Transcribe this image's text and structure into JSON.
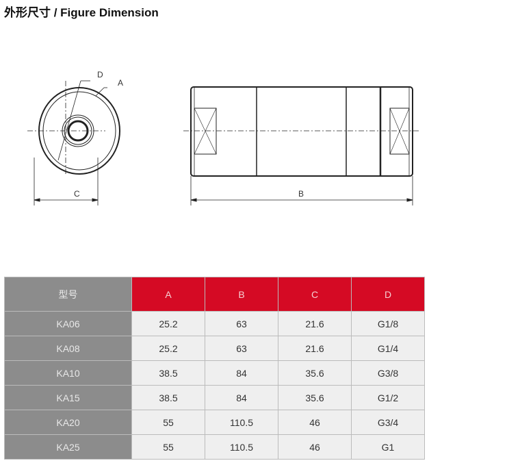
{
  "title": "外形尺寸 / Figure Dimension",
  "drawing": {
    "labels": {
      "a": "A",
      "b": "B",
      "c": "C",
      "d": "D"
    }
  },
  "table": {
    "headers": [
      "型号",
      "A",
      "B",
      "C",
      "D"
    ],
    "rows": [
      [
        "KA06",
        "25.2",
        "63",
        "21.6",
        "G1/8"
      ],
      [
        "KA08",
        "25.2",
        "63",
        "21.6",
        "G1/4"
      ],
      [
        "KA10",
        "38.5",
        "84",
        "35.6",
        "G3/8"
      ],
      [
        "KA15",
        "38.5",
        "84",
        "35.6",
        "G1/2"
      ],
      [
        "KA20",
        "55",
        "110.5",
        "46",
        "G3/4"
      ],
      [
        "KA25",
        "55",
        "110.5",
        "46",
        "G1"
      ]
    ],
    "header_color": "#d50a24",
    "model_color": "#8c8c8c"
  }
}
